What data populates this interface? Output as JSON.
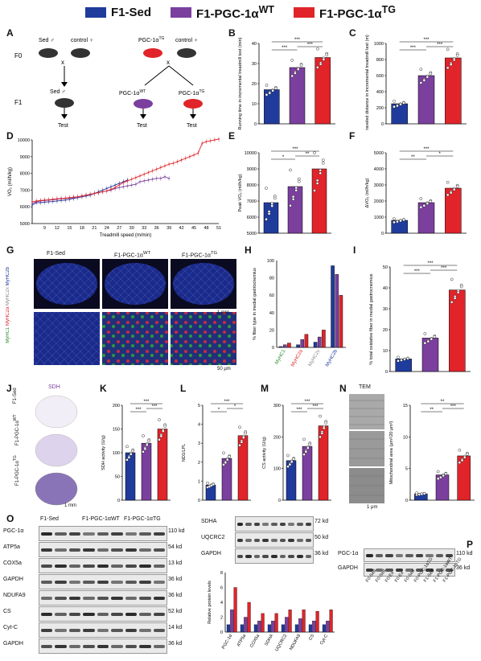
{
  "legend": {
    "items": [
      {
        "label": "F1-Sed",
        "color": "#1f3b9c"
      },
      {
        "label": "F1-PGC-1α",
        "sup": "WT",
        "color": "#7b3f9e"
      },
      {
        "label": "F1-PGC-1α",
        "sup": "TG",
        "color": "#e0242a"
      }
    ]
  },
  "panels": {
    "A": {
      "label": "A",
      "f0": "F0",
      "f1": "F1",
      "sed_m": "Sed ♂",
      "control_f": "control ♀",
      "pgc_m": "PGC-1α",
      "pgc_sup": "TG",
      "sed_f1": "Sed ♂",
      "pgc_wt": "PGC-1α",
      "pgc_wt_sup": "WT",
      "pgc_tg": "PGC-1α",
      "pgc_tg_sup": "TG",
      "test": "Test",
      "cross": "x"
    },
    "B": {
      "label": "B"
    },
    "C": {
      "label": "C"
    },
    "D": {
      "label": "D"
    },
    "E": {
      "label": "E"
    },
    "F": {
      "label": "F"
    },
    "G": {
      "label": "G",
      "titles": [
        "F1-Sed",
        "F1-PGC-1α",
        "F1-PGC-1α"
      ],
      "sups": [
        "",
        "WT",
        "TG"
      ],
      "side": [
        "MyHC1",
        "MyHC2a",
        "MyHC2x",
        "MyHC2b"
      ],
      "scale1": "1 mm",
      "scale2": "50 μm"
    },
    "H": {
      "label": "H"
    },
    "I": {
      "label": "I"
    },
    "J": {
      "label": "J",
      "title": "SDH",
      "rows": [
        "F1-Sed",
        "F1-PGC-1α",
        "F1-PGC-1α"
      ],
      "sups": [
        "",
        "WT",
        "TG"
      ],
      "scale": "1 mm"
    },
    "K": {
      "label": "K"
    },
    "L": {
      "label": "L"
    },
    "M": {
      "label": "M"
    },
    "N": {
      "label": "N",
      "title": "TEM",
      "rows": [
        "F1-Sed",
        "F1-PGC-1α",
        "F1-PGC-1α"
      ],
      "sups": [
        "",
        "WT",
        "TG"
      ],
      "scale": "1 μm"
    },
    "O": {
      "label": "O",
      "groups": [
        "F1-Sed",
        "F1-PGC-1α",
        "F1-PGC-1α"
      ],
      "group_sups": [
        "",
        "WT",
        "TG"
      ],
      "left_rows": [
        {
          "name": "PGC-1α",
          "kd": "110 kd"
        },
        {
          "name": "ATP5a",
          "kd": "54 kd"
        },
        {
          "name": "COX5a",
          "kd": "13 kd"
        },
        {
          "name": "GAPDH",
          "kd": "36 kd"
        },
        {
          "name": "NDUFA9",
          "kd": "36 kd"
        },
        {
          "name": "CS",
          "kd": "52 kd"
        },
        {
          "name": "Cyt-C",
          "kd": "14 kd"
        },
        {
          "name": "GAPDH",
          "kd": "36 kd"
        }
      ],
      "right_rows": [
        {
          "name": "SDHA",
          "kd": "72 kd"
        },
        {
          "name": "UQCRC2",
          "kd": "50 kd"
        },
        {
          "name": "GAPDH",
          "kd": "36 kd"
        }
      ]
    },
    "P": {
      "label": "P",
      "rows": [
        {
          "name": "PGC-1α",
          "kd": "110 kd"
        },
        {
          "name": "GAPDH",
          "kd": "36 kd"
        }
      ],
      "lanes": [
        "F0-Sed",
        "F0-Sed",
        "F0-Ex",
        "F0-Ex",
        "F0-Sed",
        "F0-PGC-1α",
        "F1-Sed",
        "F1-PGC-1α",
        "F1-PGC-1α"
      ],
      "lane_sups": [
        "",
        "",
        "",
        "",
        "",
        "TG",
        "",
        "WT",
        "TG"
      ]
    }
  },
  "chart_data": [
    {
      "id": "B",
      "type": "bar",
      "ylabel": "Running time in incremental treadmill test (min)",
      "ylim": [
        0,
        40
      ],
      "yticks": [
        0,
        10,
        20,
        30,
        40
      ],
      "values": [
        17,
        28,
        33
      ],
      "sig": [
        "***",
        "***",
        "***"
      ]
    },
    {
      "id": "C",
      "type": "bar",
      "ylabel": "Traveled distance in incremental treadmill test (m)",
      "ylim": [
        0,
        1000
      ],
      "yticks": [
        0,
        200,
        400,
        600,
        800,
        1000
      ],
      "values": [
        250,
        600,
        820
      ],
      "sig": [
        "***",
        "***",
        "***"
      ]
    },
    {
      "id": "D",
      "type": "line",
      "ylabel": "VO₂ (ml/h/kg)",
      "xlabel": "Treadmill speed (m/min)",
      "ylim": [
        5000,
        10000
      ],
      "yticks": [
        5000,
        6000,
        7000,
        8000,
        9000,
        10000
      ],
      "xticks": [
        "9",
        "12",
        "15",
        "18",
        "21",
        "24",
        "27",
        "30",
        "33",
        "36",
        "39",
        "42",
        "45",
        "48",
        "51"
      ],
      "series": [
        {
          "name": "F1-Sed",
          "x": [
            6,
            7,
            8,
            9,
            10,
            11,
            12,
            13,
            14,
            15,
            16,
            17,
            18,
            19,
            20,
            21,
            22,
            23,
            24,
            25,
            26,
            27,
            28,
            29
          ],
          "y": [
            6100,
            6250,
            6250,
            6280,
            6300,
            6320,
            6350,
            6380,
            6400,
            6450,
            6500,
            6550,
            6600,
            6650,
            6700,
            6800,
            6900,
            7000,
            7100,
            7200,
            7300,
            7400,
            7500,
            7600
          ]
        },
        {
          "name": "F1-PGC-1α WT",
          "x": [
            6,
            7,
            8,
            9,
            10,
            11,
            12,
            13,
            14,
            15,
            16,
            17,
            18,
            19,
            20,
            21,
            22,
            23,
            24,
            25,
            26,
            27,
            28,
            29,
            30,
            31,
            32,
            33,
            34,
            35,
            36,
            37,
            38,
            39
          ],
          "y": [
            6200,
            6300,
            6350,
            6380,
            6400,
            6420,
            6450,
            6480,
            6500,
            6520,
            6550,
            6600,
            6650,
            6700,
            6750,
            6800,
            6850,
            6900,
            6950,
            7000,
            7100,
            7150,
            7200,
            7250,
            7300,
            7350,
            7500,
            7550,
            7600,
            7650,
            7700,
            7700,
            7800,
            7700
          ]
        },
        {
          "name": "F1-PGC-1α TG",
          "x": [
            6,
            7,
            8,
            9,
            10,
            11,
            12,
            13,
            14,
            15,
            16,
            17,
            18,
            19,
            20,
            21,
            22,
            23,
            24,
            25,
            26,
            27,
            28,
            29,
            30,
            31,
            32,
            33,
            34,
            35,
            36,
            37,
            38,
            39,
            40,
            41,
            42,
            43,
            44,
            45,
            46,
            47,
            48,
            49,
            50,
            51
          ],
          "y": [
            6300,
            6350,
            6380,
            6400,
            6420,
            6450,
            6480,
            6500,
            6520,
            6550,
            6580,
            6600,
            6650,
            6700,
            6750,
            6800,
            6850,
            6900,
            6950,
            7050,
            7150,
            7300,
            7450,
            7550,
            7650,
            7750,
            7850,
            7950,
            8050,
            8150,
            8250,
            8350,
            8450,
            8550,
            8600,
            8700,
            8800,
            8900,
            9000,
            9100,
            9200,
            9800,
            9900,
            9950,
            10000,
            10050
          ]
        }
      ]
    },
    {
      "id": "E",
      "type": "bar",
      "ylabel": "Peak VO₂ (ml/h/kg)",
      "ylim": [
        5000,
        10000
      ],
      "yticks": [
        5000,
        6000,
        7000,
        8000,
        9000,
        10000
      ],
      "values": [
        6900,
        7900,
        9000
      ],
      "sig": [
        "*",
        "**",
        "***"
      ]
    },
    {
      "id": "F",
      "type": "bar",
      "ylabel": "ΔVO₂ (ml/h/kg)",
      "ylim": [
        0,
        5000
      ],
      "yticks": [
        0,
        1000,
        2000,
        3000,
        4000,
        5000
      ],
      "values": [
        800,
        1900,
        2800
      ],
      "sig": [
        "**",
        "*",
        "***"
      ]
    },
    {
      "id": "H",
      "type": "bar",
      "ylabel": "% fiber type in medial gastrocnemius",
      "ylim": [
        0,
        100
      ],
      "yticks": [
        0,
        20,
        40,
        60,
        80,
        100
      ],
      "categories": [
        "MyHC1",
        "MyHC2a",
        "MyHC2x",
        "MyHC2b"
      ],
      "category_colors": [
        "#2a8a2a",
        "#e0242a",
        "#888888",
        "#1f3b9c"
      ],
      "series": [
        {
          "values": [
            1,
            3,
            6,
            94
          ]
        },
        {
          "values": [
            3,
            9,
            12,
            84
          ]
        },
        {
          "values": [
            5,
            15,
            20,
            60
          ]
        }
      ]
    },
    {
      "id": "I",
      "type": "bar",
      "ylabel": "% total oxidative fiber in medial gastrocnemius",
      "ylim": [
        0,
        50
      ],
      "yticks": [
        0,
        10,
        20,
        30,
        40,
        50
      ],
      "values": [
        6,
        16,
        39
      ],
      "sig": [
        "***",
        "***",
        "***"
      ]
    },
    {
      "id": "K",
      "type": "bar",
      "ylabel": "SDH activity (U/g)",
      "ylim": [
        0,
        200
      ],
      "yticks": [
        0,
        50,
        100,
        150,
        200
      ],
      "values": [
        100,
        120,
        150
      ],
      "sig": [
        "***",
        "***",
        "***"
      ]
    },
    {
      "id": "L",
      "type": "bar",
      "ylabel": "ND1/LPL",
      "ylim": [
        0,
        5
      ],
      "yticks": [
        0,
        1,
        2,
        3,
        4,
        5
      ],
      "values": [
        0.8,
        2.2,
        3.4
      ],
      "sig": [
        "*",
        "*",
        "***"
      ]
    },
    {
      "id": "M",
      "type": "bar",
      "ylabel": "CS activity (U/g)",
      "ylim": [
        0,
        300
      ],
      "yticks": [
        0,
        100,
        200,
        300
      ],
      "values": [
        125,
        170,
        235
      ],
      "sig": [
        "***",
        "***",
        "***"
      ]
    },
    {
      "id": "N",
      "type": "bar",
      "ylabel": "Mitochondrial area (μm²/20 μm²)",
      "ylim": [
        0,
        15
      ],
      "yticks": [
        0,
        5,
        10,
        15
      ],
      "values": [
        1,
        4,
        7
      ],
      "sig": [
        "**",
        "***",
        "**"
      ]
    },
    {
      "id": "O2",
      "type": "bar",
      "ylabel": "Relative protein levels",
      "ylim": [
        0,
        8
      ],
      "yticks": [
        0,
        2,
        4,
        6,
        8
      ],
      "categories": [
        "PGC-1α",
        "ATP5a",
        "COX5a",
        "SDHA",
        "UQCRC2",
        "NDUFA9",
        "CS",
        "Cyt-C"
      ],
      "series": [
        {
          "values": [
            1,
            1,
            1,
            1,
            1,
            1,
            1,
            1
          ]
        },
        {
          "values": [
            3,
            2,
            1.5,
            1.5,
            2,
            1.8,
            1.5,
            1.5
          ]
        },
        {
          "values": [
            6,
            4,
            2.5,
            2.5,
            3,
            3,
            2.8,
            3
          ]
        }
      ]
    }
  ]
}
